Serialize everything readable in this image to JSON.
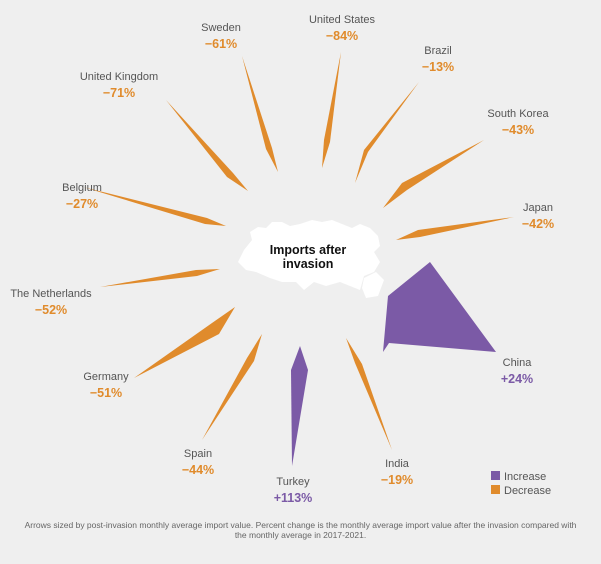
{
  "chart_data": {
    "type": "radial-arrows",
    "center_label": [
      "Imports after",
      "invasion"
    ],
    "legend": [
      {
        "label": "Increase",
        "color": "#7b5aa6"
      },
      {
        "label": "Decrease",
        "color": "#e08b2c"
      }
    ],
    "series": [
      {
        "country": "United States",
        "value": "−84%",
        "change": "decrease"
      },
      {
        "country": "Brazil",
        "value": "−13%",
        "change": "decrease"
      },
      {
        "country": "South Korea",
        "value": "−43%",
        "change": "decrease"
      },
      {
        "country": "Japan",
        "value": "−42%",
        "change": "decrease"
      },
      {
        "country": "China",
        "value": "+24%",
        "change": "increase"
      },
      {
        "country": "India",
        "value": "−19%",
        "change": "decrease"
      },
      {
        "country": "Turkey",
        "value": "+113%",
        "change": "increase"
      },
      {
        "country": "Spain",
        "value": "−44%",
        "change": "decrease"
      },
      {
        "country": "Germany",
        "value": "−51%",
        "change": "decrease"
      },
      {
        "country": "The Netherlands",
        "value": "−52%",
        "change": "decrease"
      },
      {
        "country": "Belgium",
        "value": "−27%",
        "change": "decrease"
      },
      {
        "country": "United Kingdom",
        "value": "−71%",
        "change": "decrease"
      },
      {
        "country": "Sweden",
        "value": "−61%",
        "change": "decrease"
      }
    ],
    "footnote": "Arrows sized by post-invasion monthly average import value. Percent change is the monthly average import value after the invasion compared with the monthly average in 2017-2021."
  }
}
